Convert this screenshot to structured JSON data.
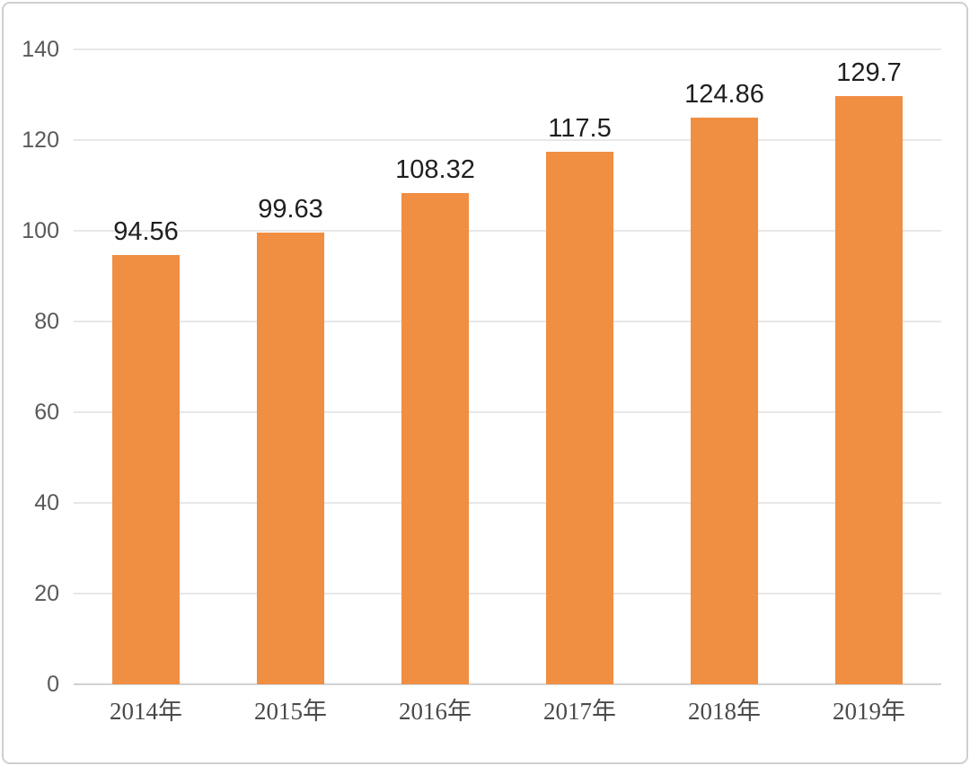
{
  "chart_data": {
    "type": "bar",
    "categories": [
      "2014年",
      "2015年",
      "2016年",
      "2017年",
      "2018年",
      "2019年"
    ],
    "values": [
      94.56,
      99.63,
      108.32,
      117.5,
      124.86,
      129.7
    ],
    "data_labels": [
      "94.56",
      "99.63",
      "108.32",
      "117.5",
      "124.86",
      "129.7"
    ],
    "title": "",
    "xlabel": "",
    "ylabel": "",
    "ylim": [
      0,
      140
    ],
    "yticks": [
      0,
      20,
      40,
      60,
      80,
      100,
      120,
      140
    ],
    "ytick_labels": [
      "0",
      "20",
      "40",
      "60",
      "80",
      "100",
      "120",
      "140"
    ],
    "grid": true,
    "legend_position": "none",
    "bar_color": "#F08E42",
    "gridline_color": "#e7e7e7",
    "axis_line_color": "#d2d2d2",
    "y_label_color": "#595959",
    "x_label_color": "#4a4a4a",
    "data_label_color": "#1f1f1f",
    "border_color": "#cfcfcf",
    "background_color": "#ffffff"
  }
}
